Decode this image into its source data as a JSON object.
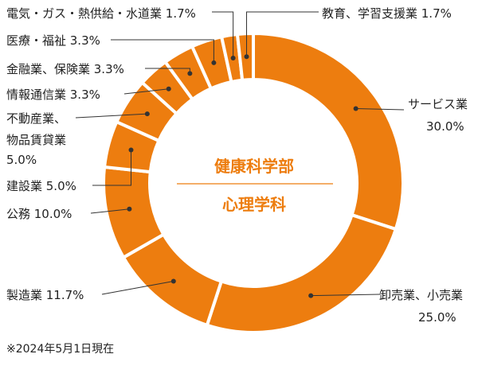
{
  "colors": {
    "slice": "#ed7d0f",
    "slice_stroke": "#ffffff",
    "center_text": "#ed7d0f",
    "center_divider": "#ed7d0f",
    "label_text": "#222222",
    "leader_line": "#333333"
  },
  "center": {
    "line1": "健康科学部",
    "line2": "心理学科"
  },
  "footnote": "※2024年5月1日現在",
  "chart_data": {
    "type": "pie",
    "donut": true,
    "unit": "%",
    "categories": [
      "サービス業",
      "卸売業、小売業",
      "製造業",
      "公務",
      "建設業",
      "不動産業、物品賃貸業",
      "情報通信業",
      "金融業、保険業",
      "医療・福祉",
      "電気・ガス・熱供給・水道業",
      "教育、学習支援業"
    ],
    "values": [
      30.0,
      25.0,
      11.7,
      10.0,
      5.0,
      5.0,
      3.3,
      3.3,
      3.3,
      1.7,
      1.7
    ],
    "labels": [
      [
        "サービス業",
        "30.0%"
      ],
      [
        "卸売業、小売業",
        "25.0%"
      ],
      [
        "製造業 11.7%"
      ],
      [
        "公務 10.0%"
      ],
      [
        "建設業 5.0%"
      ],
      [
        "不動産業、",
        "物品賃貸業",
        "5.0%"
      ],
      [
        "情報通信業 3.3%"
      ],
      [
        "金融業、保険業 3.3%"
      ],
      [
        "医療・福祉 3.3%"
      ],
      [
        "電気・ガス・熱供給・水道業 1.7%"
      ],
      [
        "教育、学習支援業 1.7%"
      ]
    ]
  }
}
